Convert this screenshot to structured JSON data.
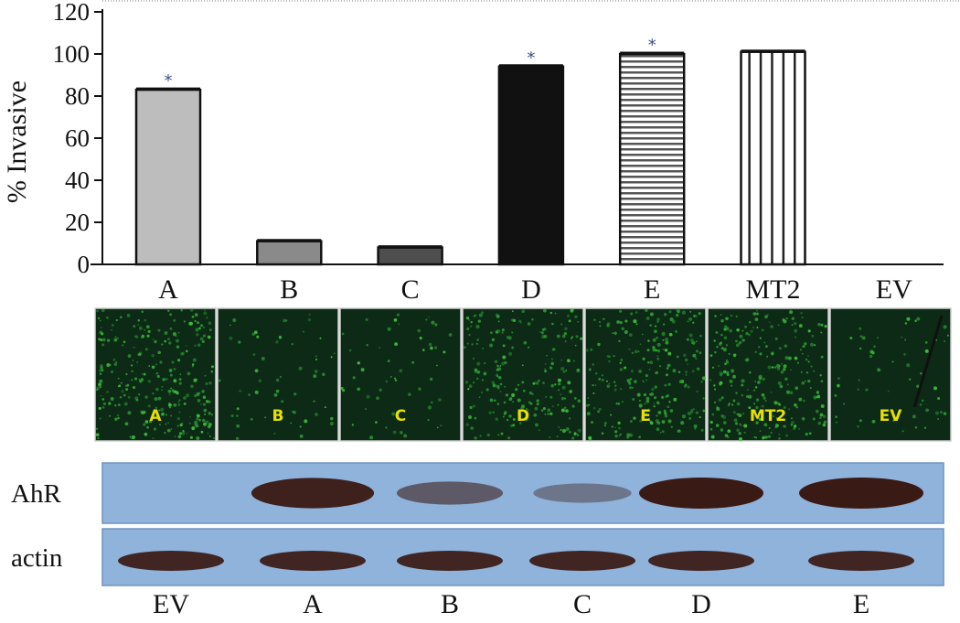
{
  "chart_data": {
    "type": "bar",
    "ylabel": "% Invasive",
    "ylim": [
      0,
      120
    ],
    "yticks": [
      "0",
      "20",
      "40",
      "60",
      "80",
      "100",
      "120"
    ],
    "categories": [
      "A",
      "B",
      "C",
      "D",
      "E",
      "MT2",
      "EV"
    ],
    "values": [
      83,
      11,
      8,
      94,
      100,
      101,
      0
    ],
    "significance": [
      "*",
      "",
      "",
      "*",
      "*",
      "",
      ""
    ],
    "bar_styles": [
      "light-gray",
      "gray",
      "dark-gray",
      "black",
      "horizontal-stripes",
      "vertical-stripes",
      "none"
    ],
    "grid": false
  },
  "micrographs": {
    "labels": [
      "A",
      "B",
      "C",
      "D",
      "E",
      "MT2",
      "EV"
    ],
    "green_density": [
      0.75,
      0.15,
      0.15,
      0.6,
      0.65,
      0.7,
      0.15
    ]
  },
  "blot": {
    "rows": [
      {
        "label": "AhR",
        "intensity": [
          0.0,
          0.95,
          0.45,
          0.2,
          1.0,
          1.0
        ]
      },
      {
        "label": "actin",
        "intensity": [
          0.9,
          0.9,
          0.9,
          0.9,
          0.9,
          0.9
        ]
      }
    ],
    "lanes": [
      "EV",
      "A",
      "B",
      "C",
      "D",
      "E"
    ],
    "colors": {
      "membrane": "#8fb3db",
      "band": "#3a1a14"
    }
  }
}
